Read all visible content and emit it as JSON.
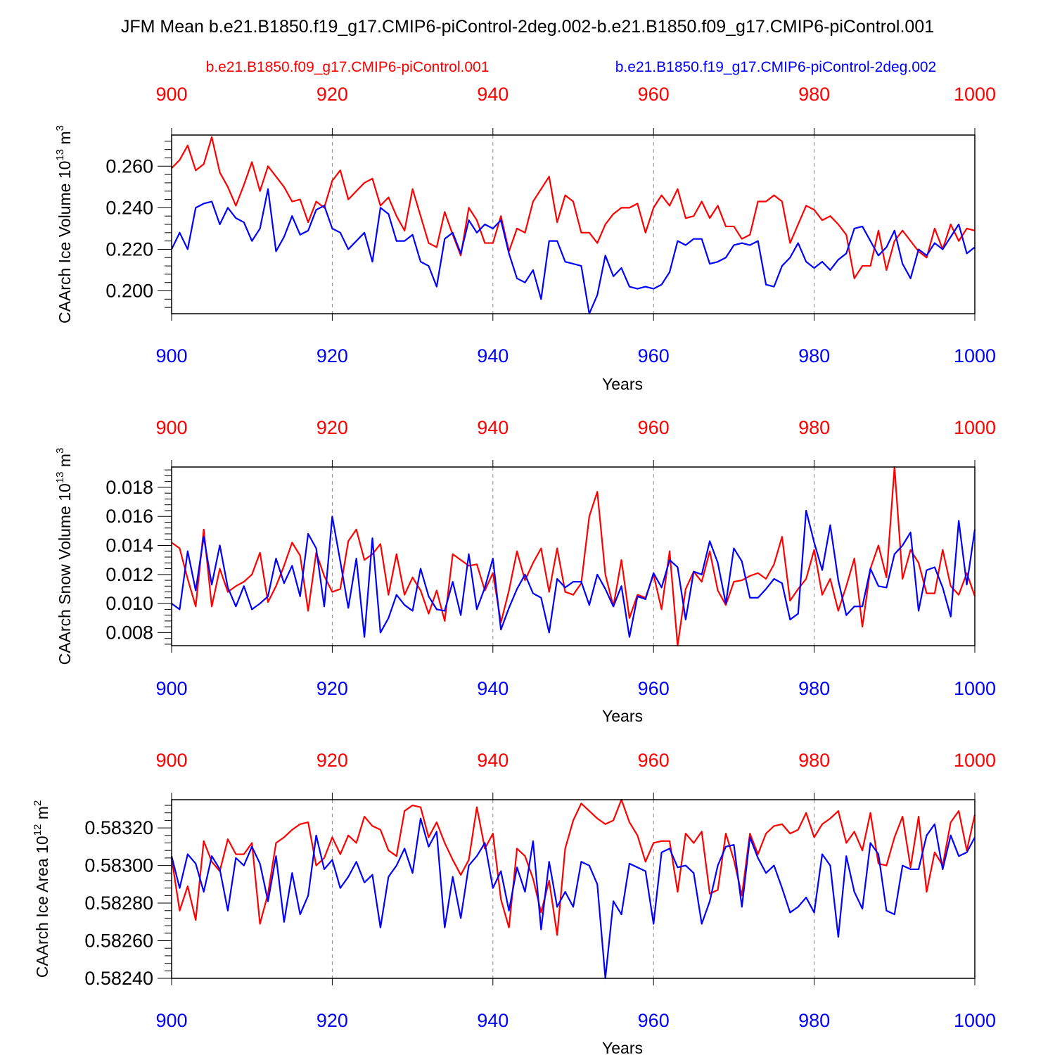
{
  "title": "JFM Mean b.e21.B1850.f19_g17.CMIP6-piControl-2deg.002-b.e21.B1850.f09_g17.CMIP6-piControl.001",
  "legend": {
    "red": "b.e21.B1850.f09_g17.CMIP6-piControl.001",
    "blue": "b.e21.B1850.f19_g17.CMIP6-piControl-2deg.002"
  },
  "colors": {
    "red": "#ff0000",
    "blue": "#0000ff"
  },
  "chart_data": [
    {
      "type": "line",
      "ylabel": "CAArch Ice Volume 10^13 m^3",
      "ylabel_text": "CAArch Ice Volume 10",
      "ylabel_exp": "13",
      "ylabel_unit": " m",
      "ylabel_unit_exp": "3",
      "xlabel": "Years",
      "xlim": [
        900,
        1000
      ],
      "ylim": [
        0.189,
        0.275
      ],
      "yticks": [
        "0.200",
        "0.220",
        "0.240",
        "0.260"
      ],
      "xticks": [
        "900",
        "920",
        "940",
        "960",
        "980",
        "1000"
      ],
      "series": [
        {
          "name": "b.e21.B1850.f09_g17.CMIP6-piControl.001",
          "color": "red",
          "values": [
            0.259,
            0.263,
            0.27,
            0.258,
            0.261,
            0.274,
            0.257,
            0.25,
            0.241,
            0.251,
            0.262,
            0.248,
            0.26,
            0.255,
            0.25,
            0.243,
            0.244,
            0.233,
            0.243,
            0.24,
            0.253,
            0.258,
            0.244,
            0.248,
            0.252,
            0.254,
            0.241,
            0.245,
            0.236,
            0.229,
            0.249,
            0.236,
            0.223,
            0.221,
            0.238,
            0.227,
            0.217,
            0.24,
            0.234,
            0.223,
            0.223,
            0.236,
            0.219,
            0.23,
            0.228,
            0.243,
            0.249,
            0.255,
            0.233,
            0.246,
            0.243,
            0.228,
            0.228,
            0.223,
            0.232,
            0.237,
            0.24,
            0.24,
            0.242,
            0.228,
            0.24,
            0.246,
            0.241,
            0.249,
            0.235,
            0.236,
            0.243,
            0.235,
            0.241,
            0.231,
            0.231,
            0.225,
            0.227,
            0.243,
            0.243,
            0.246,
            0.243,
            0.223,
            0.232,
            0.241,
            0.239,
            0.234,
            0.236,
            0.232,
            0.227,
            0.206,
            0.212,
            0.212,
            0.229,
            0.21,
            0.224,
            0.229,
            0.224,
            0.219,
            0.216,
            0.23,
            0.22,
            0.232,
            0.224,
            0.23,
            0.229
          ]
        },
        {
          "name": "b.e21.B1850.f19_g17.CMIP6-piControl-2deg.002",
          "color": "blue",
          "values": [
            0.22,
            0.228,
            0.22,
            0.24,
            0.242,
            0.243,
            0.232,
            0.24,
            0.235,
            0.233,
            0.224,
            0.23,
            0.249,
            0.219,
            0.226,
            0.236,
            0.227,
            0.229,
            0.239,
            0.241,
            0.23,
            0.228,
            0.22,
            0.224,
            0.228,
            0.214,
            0.24,
            0.237,
            0.224,
            0.224,
            0.227,
            0.214,
            0.212,
            0.202,
            0.225,
            0.228,
            0.218,
            0.234,
            0.228,
            0.232,
            0.23,
            0.234,
            0.218,
            0.206,
            0.204,
            0.21,
            0.196,
            0.224,
            0.224,
            0.214,
            0.213,
            0.212,
            0.189,
            0.198,
            0.217,
            0.207,
            0.211,
            0.202,
            0.201,
            0.202,
            0.201,
            0.203,
            0.209,
            0.224,
            0.222,
            0.225,
            0.225,
            0.213,
            0.214,
            0.216,
            0.222,
            0.223,
            0.222,
            0.224,
            0.203,
            0.202,
            0.212,
            0.216,
            0.223,
            0.214,
            0.211,
            0.214,
            0.21,
            0.215,
            0.218,
            0.23,
            0.231,
            0.224,
            0.217,
            0.221,
            0.229,
            0.213,
            0.206,
            0.22,
            0.217,
            0.223,
            0.22,
            0.226,
            0.232,
            0.218,
            0.221
          ]
        }
      ]
    },
    {
      "type": "line",
      "ylabel": "CAArch Snow Volume 10^13 m^3",
      "ylabel_text": "CAArch Snow Volume 10",
      "ylabel_exp": "13",
      "ylabel_unit": " m",
      "ylabel_unit_exp": "3",
      "xlabel": "Years",
      "xlim": [
        900,
        1000
      ],
      "ylim": [
        0.0071,
        0.0194
      ],
      "yticks": [
        "0.008",
        "0.010",
        "0.012",
        "0.014",
        "0.016",
        "0.018"
      ],
      "xticks": [
        "900",
        "920",
        "940",
        "960",
        "980",
        "1000"
      ],
      "series": [
        {
          "name": "b.e21.B1850.f09_g17.CMIP6-piControl.001",
          "color": "red",
          "values": [
            0.0142,
            0.0138,
            0.0117,
            0.0098,
            0.0151,
            0.0098,
            0.0124,
            0.0108,
            0.0112,
            0.0115,
            0.012,
            0.0135,
            0.0101,
            0.0112,
            0.0126,
            0.0142,
            0.0133,
            0.0095,
            0.0135,
            0.0119,
            0.0108,
            0.011,
            0.0143,
            0.0151,
            0.013,
            0.0134,
            0.0141,
            0.0106,
            0.0134,
            0.0106,
            0.0118,
            0.0109,
            0.0093,
            0.0109,
            0.0088,
            0.0134,
            0.013,
            0.0126,
            0.0127,
            0.0109,
            0.0121,
            0.0087,
            0.0109,
            0.0136,
            0.0116,
            0.0128,
            0.0138,
            0.0108,
            0.0138,
            0.0108,
            0.0106,
            0.0114,
            0.016,
            0.0177,
            0.012,
            0.0098,
            0.013,
            0.009,
            0.0106,
            0.0104,
            0.012,
            0.0096,
            0.0136,
            0.0071,
            0.011,
            0.0122,
            0.0115,
            0.0136,
            0.0109,
            0.0099,
            0.0115,
            0.0116,
            0.0119,
            0.0121,
            0.0117,
            0.0127,
            0.0146,
            0.0102,
            0.011,
            0.0117,
            0.0137,
            0.0106,
            0.0117,
            0.0095,
            0.0112,
            0.0131,
            0.0084,
            0.0124,
            0.014,
            0.0118,
            0.0194,
            0.0117,
            0.0137,
            0.0128,
            0.0107,
            0.0107,
            0.0137,
            0.0112,
            0.0106,
            0.0121,
            0.0105
          ]
        },
        {
          "name": "b.e21.B1850.f19_g17.CMIP6-piControl-2deg.002",
          "color": "blue",
          "values": [
            0.01,
            0.0096,
            0.0136,
            0.0109,
            0.0146,
            0.0113,
            0.014,
            0.0111,
            0.0098,
            0.0112,
            0.0096,
            0.01,
            0.0105,
            0.0131,
            0.0114,
            0.0126,
            0.0105,
            0.0148,
            0.0138,
            0.0098,
            0.016,
            0.0129,
            0.0097,
            0.0131,
            0.0077,
            0.0145,
            0.008,
            0.009,
            0.0106,
            0.0099,
            0.0095,
            0.0124,
            0.0105,
            0.0096,
            0.0095,
            0.0115,
            0.0092,
            0.0134,
            0.0096,
            0.0111,
            0.0131,
            0.0082,
            0.0097,
            0.011,
            0.012,
            0.0107,
            0.0104,
            0.008,
            0.0117,
            0.0111,
            0.0115,
            0.0115,
            0.0099,
            0.012,
            0.011,
            0.0098,
            0.0112,
            0.0077,
            0.0105,
            0.0103,
            0.0121,
            0.0111,
            0.013,
            0.0125,
            0.0089,
            0.0122,
            0.012,
            0.0143,
            0.0128,
            0.01,
            0.0138,
            0.0129,
            0.0104,
            0.0104,
            0.011,
            0.0117,
            0.0114,
            0.0089,
            0.0093,
            0.0164,
            0.0142,
            0.0123,
            0.0154,
            0.0116,
            0.0092,
            0.0098,
            0.0098,
            0.0124,
            0.0112,
            0.0111,
            0.0134,
            0.014,
            0.0149,
            0.0095,
            0.0123,
            0.0125,
            0.0111,
            0.0091,
            0.0157,
            0.0113,
            0.0151
          ]
        }
      ]
    },
    {
      "type": "line",
      "ylabel": "CAArch Ice Area 10^12 m^2",
      "ylabel_text": "CAArch Ice Area 10",
      "ylabel_exp": "12",
      "ylabel_unit": " m",
      "ylabel_unit_exp": "2",
      "xlabel": "Years",
      "xlim": [
        900,
        1000
      ],
      "ylim": [
        0.5824,
        0.58335
      ],
      "yticks": [
        "0.58240",
        "0.58260",
        "0.58280",
        "0.58300",
        "0.58320"
      ],
      "xticks": [
        "900",
        "920",
        "940",
        "960",
        "980",
        "1000"
      ],
      "series": [
        {
          "name": "b.e21.B1850.f09_g17.CMIP6-piControl.001",
          "color": "red",
          "values": [
            0.58304,
            0.58276,
            0.58289,
            0.58271,
            0.58313,
            0.58302,
            0.58297,
            0.58314,
            0.58306,
            0.58306,
            0.58312,
            0.58269,
            0.58285,
            0.58312,
            0.58315,
            0.58319,
            0.58322,
            0.58323,
            0.583,
            0.58304,
            0.58315,
            0.58306,
            0.58316,
            0.58312,
            0.58326,
            0.58321,
            0.58319,
            0.58308,
            0.58305,
            0.58329,
            0.58332,
            0.58331,
            0.58315,
            0.58323,
            0.58312,
            0.58303,
            0.58295,
            0.58303,
            0.58331,
            0.58309,
            0.58317,
            0.58282,
            0.58267,
            0.58309,
            0.58305,
            0.58293,
            0.58275,
            0.58292,
            0.58263,
            0.58309,
            0.58324,
            0.58333,
            0.58329,
            0.58325,
            0.58322,
            0.58324,
            0.58335,
            0.58323,
            0.58316,
            0.58302,
            0.58312,
            0.58313,
            0.58313,
            0.58286,
            0.58317,
            0.58312,
            0.58318,
            0.58285,
            0.58287,
            0.58317,
            0.58303,
            0.58284,
            0.58317,
            0.58306,
            0.58317,
            0.58321,
            0.58322,
            0.58317,
            0.58319,
            0.58328,
            0.58315,
            0.58322,
            0.58325,
            0.58329,
            0.58312,
            0.58318,
            0.58308,
            0.58328,
            0.58301,
            0.583,
            0.58315,
            0.58326,
            0.58299,
            0.58326,
            0.58286,
            0.58307,
            0.583,
            0.58323,
            0.58329,
            0.58308,
            0.58327
          ]
        },
        {
          "name": "b.e21.B1850.f19_g17.CMIP6-piControl-2deg.002",
          "color": "blue",
          "values": [
            0.58305,
            0.58288,
            0.58306,
            0.58301,
            0.58286,
            0.58305,
            0.58298,
            0.58276,
            0.58304,
            0.583,
            0.5831,
            0.58301,
            0.58281,
            0.58305,
            0.5827,
            0.58296,
            0.58274,
            0.58284,
            0.58316,
            0.58298,
            0.58303,
            0.58288,
            0.58294,
            0.58302,
            0.58291,
            0.58295,
            0.58267,
            0.58294,
            0.583,
            0.58309,
            0.58296,
            0.58325,
            0.5831,
            0.58318,
            0.58267,
            0.58294,
            0.58272,
            0.583,
            0.58305,
            0.58312,
            0.58288,
            0.58297,
            0.58276,
            0.58299,
            0.58286,
            0.58313,
            0.58266,
            0.58302,
            0.58278,
            0.58286,
            0.58278,
            0.58302,
            0.583,
            0.5829,
            0.5824,
            0.58281,
            0.58274,
            0.58301,
            0.58299,
            0.58297,
            0.58269,
            0.58307,
            0.58309,
            0.58299,
            0.583,
            0.58296,
            0.58269,
            0.58281,
            0.583,
            0.5831,
            0.58311,
            0.58278,
            0.58315,
            0.58304,
            0.58296,
            0.583,
            0.58288,
            0.58275,
            0.58278,
            0.58283,
            0.58275,
            0.58306,
            0.583,
            0.58262,
            0.58305,
            0.58286,
            0.58277,
            0.58312,
            0.58306,
            0.58276,
            0.58274,
            0.583,
            0.58298,
            0.58298,
            0.58316,
            0.58322,
            0.58298,
            0.58316,
            0.58305,
            0.58307,
            0.58315
          ]
        }
      ]
    }
  ]
}
